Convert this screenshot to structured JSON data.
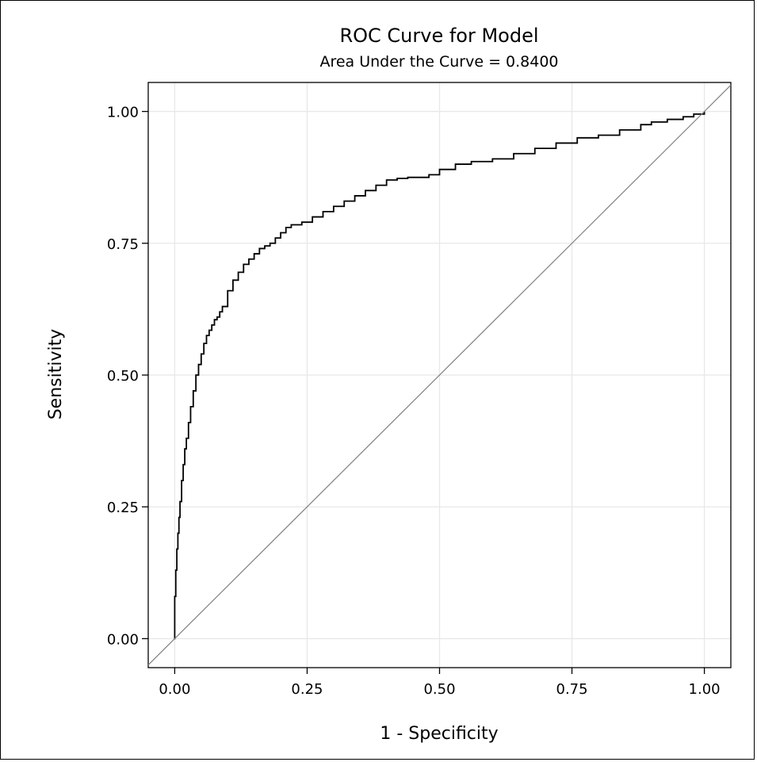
{
  "chart_data": {
    "type": "line",
    "title": "ROC Curve for Model",
    "subtitle": "Area Under the Curve = 0.8400",
    "xlabel": "1 - Specificity",
    "ylabel": "Sensitivity",
    "xlim": [
      -0.05,
      1.05
    ],
    "ylim": [
      -0.055,
      1.055
    ],
    "x_ticks": [
      "0.00",
      "0.25",
      "0.50",
      "0.75",
      "1.00"
    ],
    "y_ticks": [
      "0.00",
      "0.25",
      "0.50",
      "0.75",
      "1.00"
    ],
    "grid": true,
    "legend": "none",
    "series": [
      {
        "style": "step",
        "color": "#000000",
        "x": [
          0.0,
          0.0,
          0.002,
          0.004,
          0.006,
          0.008,
          0.01,
          0.013,
          0.016,
          0.019,
          0.022,
          0.026,
          0.03,
          0.035,
          0.04,
          0.045,
          0.05,
          0.055,
          0.06,
          0.065,
          0.07,
          0.075,
          0.08,
          0.085,
          0.09,
          0.1,
          0.11,
          0.12,
          0.13,
          0.14,
          0.15,
          0.16,
          0.17,
          0.18,
          0.19,
          0.2,
          0.21,
          0.22,
          0.24,
          0.26,
          0.28,
          0.3,
          0.32,
          0.34,
          0.36,
          0.38,
          0.4,
          0.42,
          0.44,
          0.46,
          0.48,
          0.5,
          0.53,
          0.56,
          0.6,
          0.64,
          0.68,
          0.72,
          0.76,
          0.8,
          0.84,
          0.88,
          0.9,
          0.93,
          0.96,
          0.98,
          1.0
        ],
        "y": [
          0.0,
          0.08,
          0.13,
          0.17,
          0.2,
          0.23,
          0.26,
          0.3,
          0.33,
          0.36,
          0.38,
          0.41,
          0.44,
          0.47,
          0.5,
          0.52,
          0.54,
          0.56,
          0.575,
          0.585,
          0.595,
          0.605,
          0.61,
          0.62,
          0.63,
          0.66,
          0.68,
          0.695,
          0.71,
          0.72,
          0.73,
          0.74,
          0.745,
          0.75,
          0.76,
          0.77,
          0.78,
          0.785,
          0.79,
          0.8,
          0.81,
          0.82,
          0.83,
          0.84,
          0.85,
          0.86,
          0.87,
          0.873,
          0.875,
          0.875,
          0.88,
          0.89,
          0.9,
          0.905,
          0.91,
          0.92,
          0.93,
          0.94,
          0.95,
          0.955,
          0.965,
          0.975,
          0.98,
          0.985,
          0.99,
          0.995,
          1.0
        ]
      },
      {
        "style": "reference",
        "color": "#808080",
        "x": [
          -0.05,
          1.05
        ],
        "y": [
          -0.05,
          1.05
        ]
      }
    ]
  }
}
